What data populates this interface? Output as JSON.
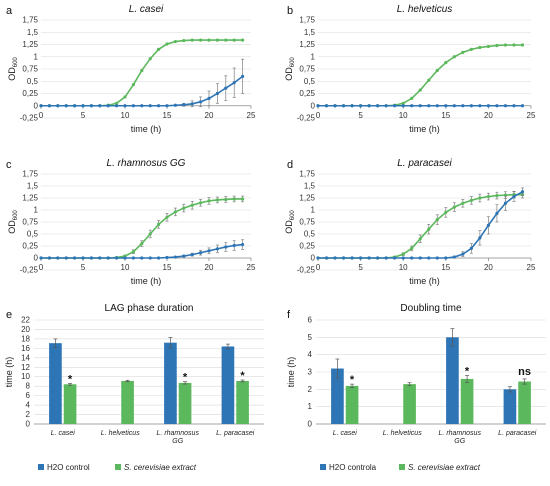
{
  "panel_labels": [
    "a",
    "b",
    "c",
    "d",
    "e",
    "f"
  ],
  "colors": {
    "h2o": "#2e75b6",
    "extract": "#5cb85c"
  },
  "chart_data": [
    {
      "id": "a",
      "type": "line",
      "title": "L. casei",
      "xlabel": "time (h)",
      "ylabel_main": "OD",
      "ylabel_sub": "600",
      "xlim": [
        0,
        25
      ],
      "ylim": [
        -0.25,
        1.75
      ],
      "xticks": [
        0,
        5,
        10,
        15,
        20,
        25
      ],
      "yticks": [
        -0.25,
        0,
        0.25,
        0.5,
        0.75,
        1,
        1.25,
        1.5,
        1.75
      ],
      "ytick_labels": [
        "-0,25",
        "0",
        "0,25",
        "0,5",
        "0,75",
        "1",
        "1,25",
        "1,5",
        "1,75"
      ],
      "x": [
        0,
        1,
        2,
        3,
        4,
        5,
        6,
        7,
        8,
        9,
        10,
        11,
        12,
        13,
        14,
        15,
        16,
        17,
        18,
        19,
        20,
        21,
        22,
        23,
        24
      ],
      "series": [
        {
          "key": "extract",
          "values": [
            0,
            0,
            0,
            0,
            0,
            0,
            0,
            0,
            0.01,
            0.05,
            0.18,
            0.43,
            0.72,
            0.96,
            1.15,
            1.26,
            1.31,
            1.33,
            1.34,
            1.34,
            1.34,
            1.34,
            1.34,
            1.34,
            1.34
          ],
          "err": []
        },
        {
          "key": "h2o",
          "values": [
            0,
            0,
            0,
            0,
            0,
            0,
            0,
            0,
            0,
            0,
            0,
            0,
            0,
            0,
            0,
            0,
            0.01,
            0.02,
            0.04,
            0.08,
            0.15,
            0.25,
            0.36,
            0.47,
            0.6
          ],
          "err": [
            0,
            0,
            0,
            0,
            0,
            0,
            0,
            0,
            0,
            0,
            0,
            0,
            0,
            0,
            0,
            0,
            0,
            0.03,
            0.06,
            0.1,
            0.15,
            0.2,
            0.25,
            0.3,
            0.35
          ]
        }
      ]
    },
    {
      "id": "b",
      "type": "line",
      "title": "L. helveticus",
      "xlabel": "time (h)",
      "ylabel_main": "OD",
      "ylabel_sub": "600",
      "xlim": [
        0,
        25
      ],
      "ylim": [
        -0.25,
        1.75
      ],
      "xticks": [
        0,
        5,
        10,
        15,
        20,
        25
      ],
      "yticks": [
        -0.25,
        0,
        0.25,
        0.5,
        0.75,
        1,
        1.25,
        1.5,
        1.75
      ],
      "ytick_labels": [
        "-0,25",
        "0",
        "0,25",
        "0,5",
        "0,75",
        "1",
        "1,25",
        "1,5",
        "1,75"
      ],
      "x": [
        0,
        1,
        2,
        3,
        4,
        5,
        6,
        7,
        8,
        9,
        10,
        11,
        12,
        13,
        14,
        15,
        16,
        17,
        18,
        19,
        20,
        21,
        22,
        23,
        24
      ],
      "series": [
        {
          "key": "extract",
          "values": [
            0,
            0,
            0,
            0,
            0,
            0,
            0,
            0,
            0,
            0.01,
            0.05,
            0.15,
            0.32,
            0.52,
            0.72,
            0.88,
            1.0,
            1.09,
            1.15,
            1.19,
            1.21,
            1.23,
            1.24,
            1.24,
            1.24
          ],
          "err": []
        },
        {
          "key": "h2o",
          "values": [
            0,
            0,
            0,
            0,
            0,
            0,
            0,
            0,
            0,
            0,
            0,
            0,
            0,
            0,
            0,
            0,
            0,
            0,
            0,
            0,
            0,
            0,
            0,
            0,
            0
          ],
          "err": []
        }
      ]
    },
    {
      "id": "c",
      "type": "line",
      "title": "L. rhamnosus GG",
      "xlabel": "time (h)",
      "ylabel_main": "OD",
      "ylabel_sub": "600",
      "xlim": [
        0,
        25
      ],
      "ylim": [
        -0.25,
        1.75
      ],
      "xticks": [
        0,
        5,
        10,
        15,
        20,
        25
      ],
      "yticks": [
        -0.25,
        0,
        0.25,
        0.5,
        0.75,
        1,
        1.25,
        1.5,
        1.75
      ],
      "ytick_labels": [
        "-0,25",
        "0",
        "0,25",
        "0,5",
        "0,75",
        "1",
        "1,25",
        "1,5",
        "1,75"
      ],
      "x": [
        0,
        1,
        2,
        3,
        4,
        5,
        6,
        7,
        8,
        9,
        10,
        11,
        12,
        13,
        14,
        15,
        16,
        17,
        18,
        19,
        20,
        21,
        22,
        23,
        24
      ],
      "series": [
        {
          "key": "extract",
          "values": [
            0,
            0,
            0,
            0,
            0,
            0,
            0,
            0,
            0,
            0.01,
            0.04,
            0.13,
            0.3,
            0.5,
            0.7,
            0.85,
            0.96,
            1.04,
            1.1,
            1.15,
            1.19,
            1.21,
            1.22,
            1.23,
            1.23
          ],
          "err": [
            0,
            0,
            0,
            0,
            0,
            0,
            0,
            0,
            0,
            0,
            0.02,
            0.04,
            0.06,
            0.08,
            0.08,
            0.08,
            0.08,
            0.08,
            0.08,
            0.07,
            0.07,
            0.06,
            0.06,
            0.06,
            0.06
          ]
        },
        {
          "key": "h2o",
          "values": [
            0,
            0,
            0,
            0,
            0,
            0,
            0,
            0,
            0,
            0,
            0,
            0,
            0,
            0,
            0,
            0.01,
            0.02,
            0.04,
            0.07,
            0.11,
            0.15,
            0.19,
            0.23,
            0.26,
            0.28
          ],
          "err": [
            0,
            0,
            0,
            0,
            0,
            0,
            0,
            0,
            0,
            0,
            0,
            0,
            0,
            0,
            0,
            0,
            0,
            0.02,
            0.03,
            0.05,
            0.06,
            0.08,
            0.09,
            0.1,
            0.1
          ]
        }
      ]
    },
    {
      "id": "d",
      "type": "line",
      "title": "L. paracasei",
      "xlabel": "time (h)",
      "ylabel_main": "OD",
      "ylabel_sub": "600",
      "xlim": [
        0,
        25
      ],
      "ylim": [
        -0.25,
        1.75
      ],
      "xticks": [
        0,
        5,
        10,
        15,
        20,
        25
      ],
      "yticks": [
        -0.25,
        0,
        0.25,
        0.5,
        0.75,
        1,
        1.25,
        1.5,
        1.75
      ],
      "ytick_labels": [
        "-0,25",
        "0",
        "0,25",
        "0,5",
        "0,75",
        "1",
        "1,25",
        "1,5",
        "1,75"
      ],
      "x": [
        0,
        1,
        2,
        3,
        4,
        5,
        6,
        7,
        8,
        9,
        10,
        11,
        12,
        13,
        14,
        15,
        16,
        17,
        18,
        19,
        20,
        21,
        22,
        23,
        24
      ],
      "series": [
        {
          "key": "extract",
          "values": [
            0,
            0,
            0,
            0,
            0,
            0,
            0,
            0,
            0,
            0.02,
            0.08,
            0.2,
            0.4,
            0.6,
            0.8,
            0.95,
            1.06,
            1.14,
            1.2,
            1.25,
            1.28,
            1.3,
            1.31,
            1.32,
            1.32
          ],
          "err": [
            0,
            0,
            0,
            0,
            0,
            0,
            0,
            0,
            0,
            0,
            0.03,
            0.05,
            0.08,
            0.1,
            0.1,
            0.1,
            0.09,
            0.08,
            0.08,
            0.08,
            0.07,
            0.07,
            0.07,
            0.07,
            0.07
          ]
        },
        {
          "key": "h2o",
          "values": [
            0,
            0,
            0,
            0,
            0,
            0,
            0,
            0,
            0,
            0,
            0,
            0,
            0,
            0,
            0,
            0,
            0.02,
            0.08,
            0.2,
            0.42,
            0.68,
            0.93,
            1.14,
            1.28,
            1.38
          ],
          "err": [
            0,
            0,
            0,
            0,
            0,
            0,
            0,
            0,
            0,
            0,
            0,
            0,
            0,
            0,
            0,
            0,
            0.02,
            0.05,
            0.1,
            0.15,
            0.18,
            0.18,
            0.15,
            0.1,
            0.08
          ]
        }
      ]
    },
    {
      "id": "e",
      "type": "bar",
      "title": "LAG phase duration",
      "ylabel": "time (h)",
      "ylim": [
        0,
        22
      ],
      "yticks": [
        0,
        2,
        4,
        6,
        8,
        10,
        12,
        14,
        16,
        18,
        20,
        22
      ],
      "categories": [
        "L. casei",
        "L. helveticus",
        "L. rhamnosus GG",
        "L. paracasei"
      ],
      "category_lines": [
        [
          "L. casei"
        ],
        [
          "L. helveticus"
        ],
        [
          "L. rhamnosus",
          "GG"
        ],
        [
          "L. paracasei"
        ]
      ],
      "series": [
        {
          "key": "h2o",
          "name": "H2O control",
          "values": [
            17.1,
            null,
            17.2,
            16.4
          ],
          "err": [
            0.9,
            null,
            1.1,
            0.5
          ]
        },
        {
          "key": "extract",
          "name": "S. cerevisiae extract",
          "values": [
            8.4,
            9.1,
            8.7,
            9.1
          ],
          "err": [
            0.2,
            0.15,
            0.25,
            0.2
          ]
        }
      ],
      "annotations": [
        "*",
        "",
        "*",
        "*"
      ]
    },
    {
      "id": "f",
      "type": "bar",
      "title": "Doubling time",
      "ylabel": "time (h)",
      "ylim": [
        0,
        6
      ],
      "yticks": [
        0,
        1,
        2,
        3,
        4,
        5,
        6
      ],
      "categories": [
        "L. casei",
        "L. helveticus",
        "L. rhamnosus GG",
        "L. paracasei"
      ],
      "category_lines": [
        [
          "L. casei"
        ],
        [
          "L. helveticus"
        ],
        [
          "L. rhamnosus",
          "GG"
        ],
        [
          "L. paracasei"
        ]
      ],
      "series": [
        {
          "key": "h2o",
          "name": "H2O controla",
          "values": [
            3.2,
            null,
            5.0,
            2.0
          ],
          "err": [
            0.55,
            null,
            0.5,
            0.15
          ]
        },
        {
          "key": "extract",
          "name": "S. cerevisiae extract",
          "values": [
            2.2,
            2.3,
            2.6,
            2.45
          ],
          "err": [
            0.1,
            0.08,
            0.2,
            0.15
          ]
        }
      ],
      "annotations": [
        "*",
        "",
        "*",
        "ns"
      ]
    }
  ]
}
